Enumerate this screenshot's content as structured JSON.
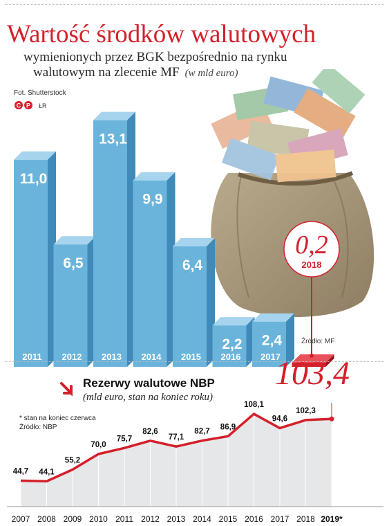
{
  "title": "Wartość środków walutowych",
  "subtitle_line1": "wymienionych przez BGK bezpośrednio na rynku",
  "subtitle_line2": "walutowym na zlecenie MF",
  "subtitle_unit": "(w mld euro)",
  "photo_credit": "Fot. Shutterstock",
  "author": "ŁR",
  "source_top": "Źródło: MF",
  "reserves_title": "Rezerwy walutowe NBP",
  "reserves_subtitle": "(mld euro, stan na koniec roku)",
  "note_june": "* stan na koniec czerwca",
  "source_bottom": "Źródło: NBP",
  "colors": {
    "accent_red": "#d3202b",
    "bar_blue": "#6ab4dc",
    "bar_blue_dark": "#3f8ab8"
  },
  "icons": [
    "cp-logo-icon",
    "down-arrow-icon",
    "money-bag-illustration"
  ],
  "chart_data": [
    {
      "type": "bar",
      "categories": [
        "2011",
        "2012",
        "2013",
        "2014",
        "2015",
        "2016",
        "2017",
        "2018"
      ],
      "values": [
        11.0,
        6.5,
        13.1,
        9.9,
        6.4,
        2.2,
        2.4,
        0.2
      ],
      "labels": [
        "11,0",
        "6,5",
        "13,1",
        "9,9",
        "6,4",
        "2,2",
        "2,4",
        "0,2"
      ],
      "highlight": "2018",
      "ylim": [
        0,
        14
      ]
    },
    {
      "type": "line",
      "x": [
        "2007",
        "2008",
        "2009",
        "2010",
        "2011",
        "2012",
        "2013",
        "2014",
        "2015",
        "2016",
        "2017",
        "2018",
        "2019*"
      ],
      "values": [
        44.7,
        44.1,
        55.2,
        70.0,
        75.7,
        82.6,
        77.1,
        82.7,
        86.9,
        108.1,
        94.6,
        102.3,
        103.4
      ],
      "labels": [
        "44,7",
        "44,1",
        "55,2",
        "70,0",
        "75,7",
        "82,6",
        "77,1",
        "82,7",
        "86,9",
        "108,1",
        "94,6",
        "102,3",
        "103,4"
      ],
      "ylim": [
        0,
        115
      ]
    }
  ]
}
